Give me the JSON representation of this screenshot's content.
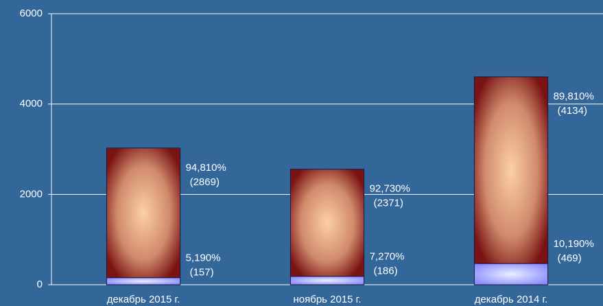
{
  "chart_data": {
    "type": "stacked_bar",
    "categories": [
      "декабрь 2015 г.",
      "ноябрь 2015 г.",
      "декабрь 2014 г."
    ],
    "series": [
      {
        "color": "#8c8cff",
        "values": [
          157,
          186,
          469
        ],
        "share_labels": [
          "5,190%",
          "7,270%",
          "10,190%"
        ],
        "value_labels": [
          "(157)",
          "(186)",
          "(469)"
        ]
      },
      {
        "color": "#7a1414",
        "values": [
          2869,
          2371,
          4134
        ],
        "share_labels": [
          "94,810%",
          "92,730%",
          "89,810%"
        ],
        "value_labels": [
          "(2869)",
          "(2371)",
          "(4134)"
        ]
      }
    ],
    "ylim": [
      0,
      6000
    ],
    "yticks": [
      0,
      2000,
      4000,
      6000
    ],
    "grid": true
  }
}
